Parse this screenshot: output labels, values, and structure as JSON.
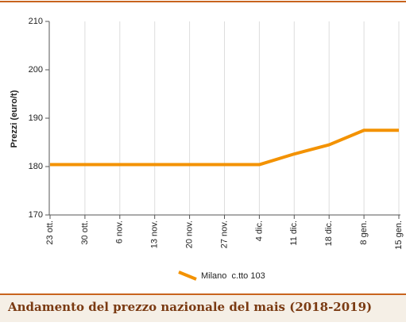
{
  "chart_data": {
    "type": "line",
    "title": "Andamento del prezzo nazionale del mais (2018-2019)",
    "y_label": "Prezzi (euro/t)",
    "categories": [
      "23 ott.",
      "30 ott.",
      "6 nov.",
      "13 nov.",
      "20 nov.",
      "27 nov.",
      "4 dic.",
      "11 dic.",
      "18 dic.",
      "8 gen.",
      "15 gen."
    ],
    "series": [
      {
        "name": "Milano  c.tto 103",
        "color": "#f39200",
        "values": [
          180.4,
          180.4,
          180.4,
          180.4,
          180.4,
          180.4,
          180.4,
          182.6,
          184.5,
          187.5,
          187.5
        ]
      }
    ],
    "ylim": [
      170,
      210
    ],
    "yticks": [
      170,
      180,
      190,
      200,
      210
    ],
    "grid": true
  }
}
